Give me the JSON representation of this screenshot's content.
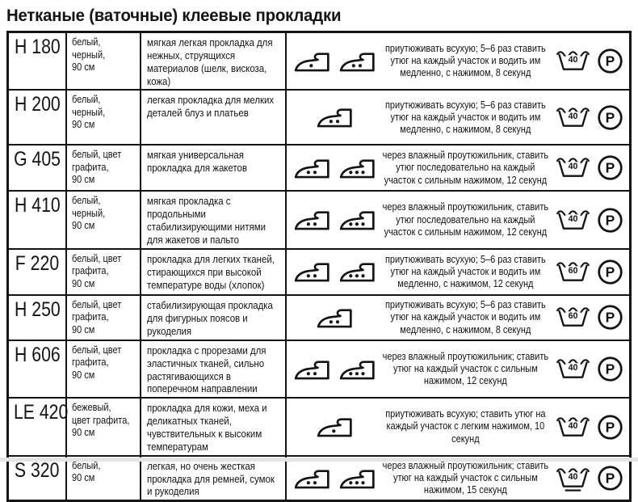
{
  "page": {
    "title": "Нетканые (ваточные) клеевые прокладки"
  },
  "symbols": {
    "dry_clean": "P"
  },
  "table": {
    "rows": [
      {
        "code": "H 180",
        "colors": "белый,\nчерный,\n90 см",
        "description": "мягкая легкая прокладка для нежных, струящихся материалов (шелк, вискоза, кожа)",
        "irons": [
          1,
          2
        ],
        "instructions": "приутюживать всухую; 5–6 раз ставить утюг на каждый участок и водить им медленно, с нажимом, 8 секунд",
        "wash_temp": "40"
      },
      {
        "code": "H 200",
        "colors": "белый,\nчерный,\n90 см",
        "description": "легкая прокладка для мелких деталей блуз и платьев",
        "irons": [
          2
        ],
        "instructions": "приутюживать всухую; 5–6 раз ставить утюг на каждый участок и водить им медленно, с нажимом, 8 секунд",
        "wash_temp": "40"
      },
      {
        "code": "G 405",
        "colors": "белый, цвет\nграфита,\n90 см",
        "description": "мягкая универсальная прокладка для жакетов",
        "irons": [
          2,
          3
        ],
        "instructions": "через влажный проутюжильник, ставить утюг последовательно на каждый участок с сильным нажимом, 12 секунд",
        "wash_temp": "40"
      },
      {
        "code": "H 410",
        "colors": "белый,\nчерный,\n90 см",
        "description": "мягкая прокладка с продольными стабилизирующими нитями для жакетов и пальто",
        "irons": [
          2,
          3
        ],
        "instructions": "через влажный проутюжильник, ставить утюг последовательно на каждый участок с сильным нажимом, 12 секунд",
        "wash_temp": "40"
      },
      {
        "code": "F 220",
        "colors": "белый, цвет\nграфита,\n90 см",
        "description": "прокладка для легких тканей, стирающихся при высокой температуре воды (хлопок)",
        "irons": [
          2,
          3
        ],
        "instructions": "приутюживать всухую; 5–6 раз ставить утюг на каждый участок и водить им медленно, с нажимом, 12 секунд",
        "wash_temp": "60"
      },
      {
        "code": "H 250",
        "colors": "белый, цвет\nграфита,\n90 см",
        "description": "стабилизирующая прокладка для фигурных поясов и рукоделия",
        "irons": [
          2
        ],
        "instructions": "приутюживать всухую; 5–6 раз ставить утюг на каждый участок и водить им медленно, с нажимом, 8 секунд",
        "wash_temp": "60"
      },
      {
        "code": "H 606",
        "colors": "белый, цвет\nграфита,\n90 см",
        "description": "прокладка с прорезами для эластичных тканей, сильно растягивающихся в поперечном направлении",
        "irons": [
          2,
          3
        ],
        "instructions": "через влажный проутюжильник; ставить утюг на каждый участок с сильным нажимом, 12 секунд",
        "wash_temp": "40"
      },
      {
        "code": "LE 420",
        "colors": "бежевый,\nцвет графита,\n90 см",
        "description": "прокладка для кожи, меха и деликатных тканей, чувствительных к высоким температурам",
        "irons": [
          1
        ],
        "instructions": "приутюживать всухую; ставить утюг на каждый участок с легким нажимом, 10 секунд",
        "wash_temp": "40"
      },
      {
        "code": "S 320",
        "colors": "белый,\n90 см",
        "description": "легкая, но очень жесткая прокладка для ремней, сумок и рукоделия",
        "irons": [
          2,
          3
        ],
        "instructions": "через влажный проутюжильник; ставить утюг на каждый участок с сильным нажимом, 15 секунд",
        "wash_temp": "40",
        "wash_underline": true
      }
    ]
  }
}
